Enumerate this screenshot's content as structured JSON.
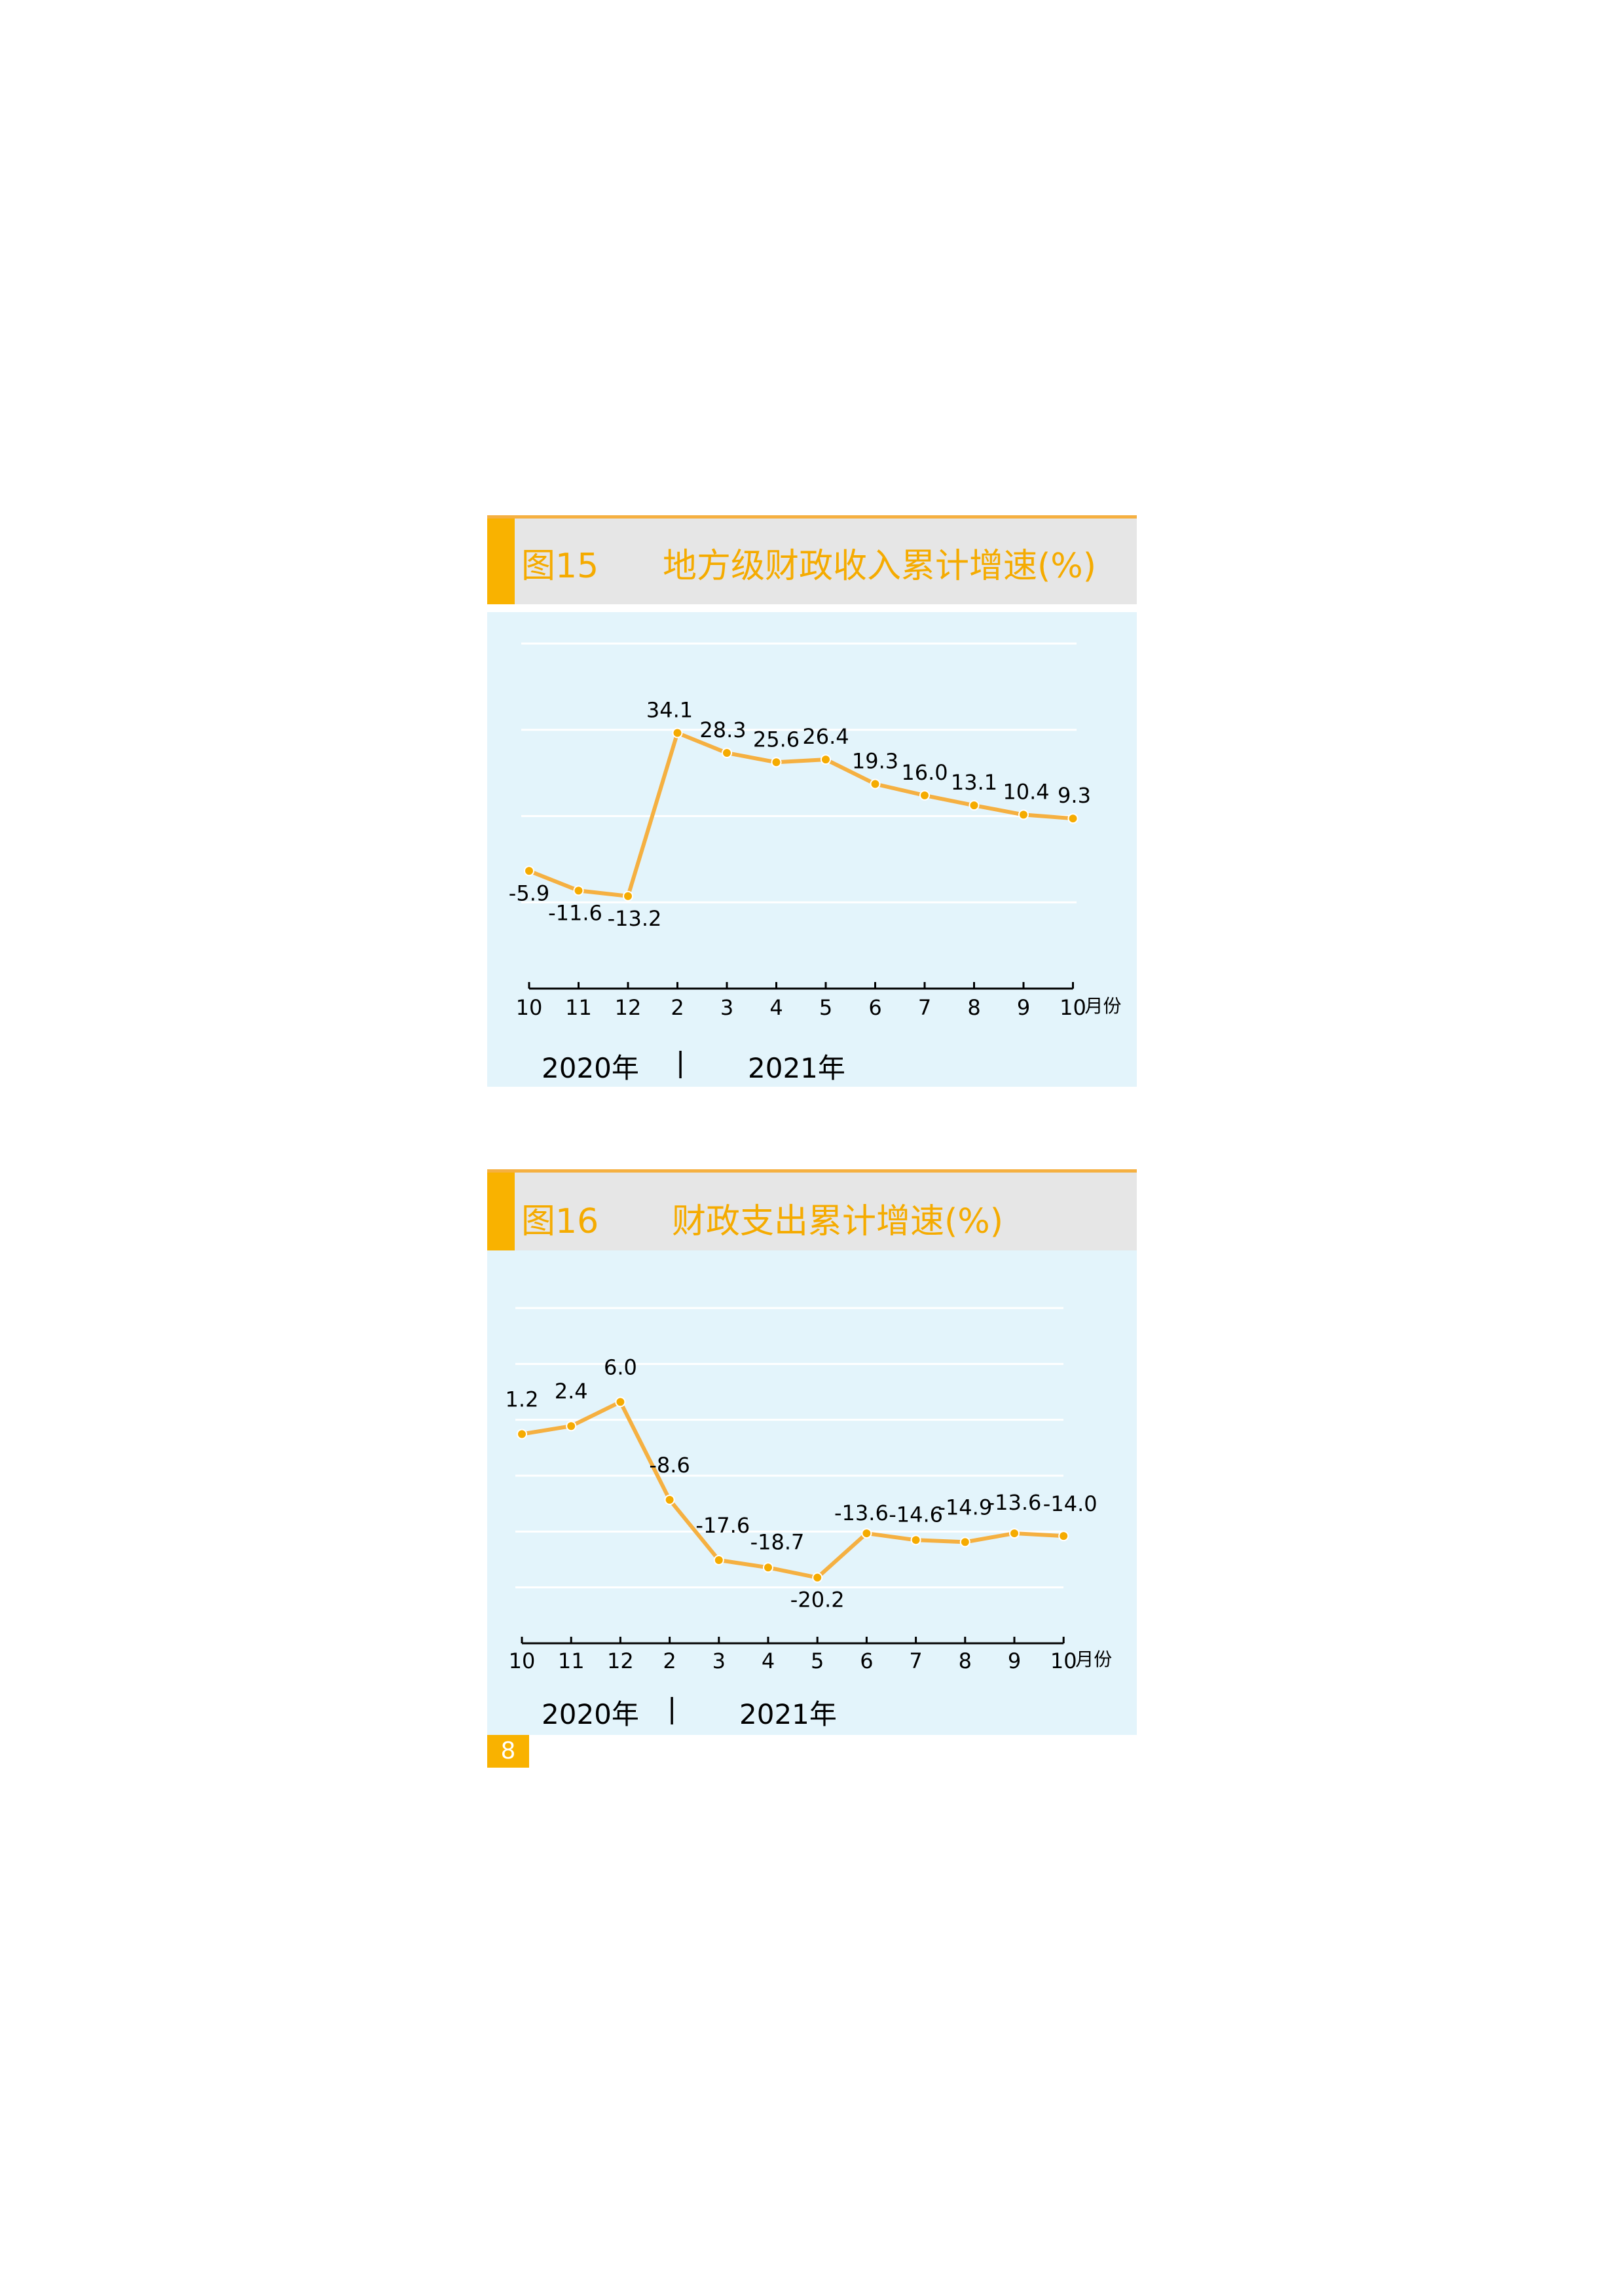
{
  "chart_data": [
    {
      "type": "line",
      "figure_no": "图15",
      "title": "地方级财政收入累计增速(%)",
      "categories": [
        "10",
        "11",
        "12",
        "2",
        "3",
        "4",
        "5",
        "6",
        "7",
        "8",
        "9",
        "10"
      ],
      "x_unit": "月份",
      "values": [
        -5.9,
        -11.6,
        -13.2,
        34.1,
        28.3,
        25.6,
        26.4,
        19.3,
        16.0,
        13.1,
        10.4,
        9.3
      ],
      "value_labels": [
        "-5.9",
        "-11.6",
        "-13.2",
        "34.1",
        "28.3",
        "25.6",
        "26.4",
        "19.3",
        "16.0",
        "13.1",
        "10.4",
        "9.3"
      ],
      "year_labels": [
        "2020年",
        "|",
        "2021年"
      ],
      "ylim": [
        -40,
        60
      ],
      "grid": true,
      "line_color": "#f5b041",
      "marker_color": "#f5ab00"
    },
    {
      "type": "line",
      "figure_no": "图16",
      "title": "财政支出累计增速(%)",
      "categories": [
        "10",
        "11",
        "12",
        "2",
        "3",
        "4",
        "5",
        "6",
        "7",
        "8",
        "9",
        "10"
      ],
      "x_unit": "月份",
      "values": [
        1.2,
        2.4,
        6.0,
        -8.6,
        -17.6,
        -18.7,
        -20.2,
        -13.6,
        -14.6,
        -14.9,
        -13.6,
        -14.0
      ],
      "value_labels": [
        "1.2",
        "2.4",
        "6.0",
        "-8.6",
        "-17.6",
        "-18.7",
        "-20.2",
        "-13.6",
        "-14.6",
        "-14.9",
        "-13.6",
        "-14.0"
      ],
      "year_labels": [
        "2020年",
        "|",
        "2021年"
      ],
      "ylim": [
        -30,
        20
      ],
      "grid": true,
      "line_color": "#f5b041",
      "marker_color": "#f5ab00"
    }
  ],
  "page_number": "8"
}
